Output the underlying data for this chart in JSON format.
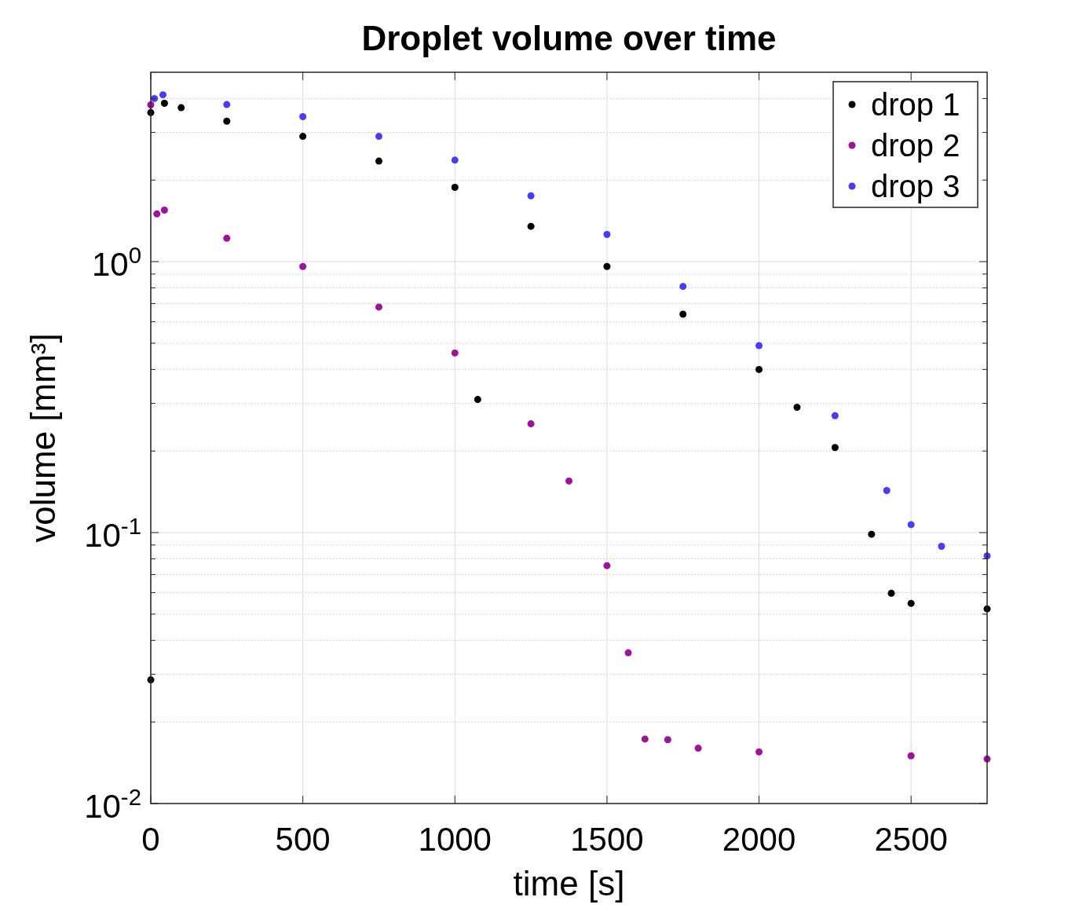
{
  "chart_data": {
    "type": "scatter",
    "title": "Droplet volume over time",
    "xlabel": "time [s]",
    "ylabel": "volume [mm³]",
    "xlim": [
      0,
      2750
    ],
    "xticks": [
      0,
      500,
      1000,
      1500,
      2000,
      2500
    ],
    "ylim": [
      0.01,
      5
    ],
    "yticks": [
      {
        "value": 0.01,
        "label": "10$^{-2}$"
      },
      {
        "value": 0.1,
        "label": "10$^{-1}$"
      },
      {
        "value": 1,
        "label": "10$^{0}$"
      }
    ],
    "log": "y",
    "grid": true,
    "legend": "top right",
    "marker": "circle",
    "series": [
      {
        "name": "drop 1",
        "color": "#000000",
        "x": [
          0,
          0,
          45,
          100,
          250,
          500,
          750,
          1000,
          1075,
          1250,
          1500,
          1750,
          2000,
          2125,
          2250,
          2370,
          2435,
          2500,
          2750
        ],
        "values": [
          0.0286,
          3.55,
          3.84,
          3.7,
          3.3,
          2.9,
          2.35,
          1.88,
          0.31,
          1.35,
          0.96,
          0.64,
          0.4,
          0.29,
          0.206,
          0.0986,
          0.0597,
          0.0548,
          0.0523
        ]
      },
      {
        "name": "drop 2",
        "color": "#a0129e",
        "x": [
          0,
          20,
          45,
          250,
          500,
          750,
          1000,
          1250,
          1375,
          1500,
          1570,
          1625,
          1700,
          1800,
          2000,
          2500,
          2750
        ],
        "values": [
          3.79,
          1.5,
          1.55,
          1.22,
          0.96,
          0.68,
          0.46,
          0.252,
          0.155,
          0.0755,
          0.036,
          0.0173,
          0.0172,
          0.016,
          0.0155,
          0.015,
          0.0146
        ]
      },
      {
        "name": "drop 3",
        "color": "#4a3cf5",
        "x": [
          12,
          40,
          250,
          500,
          750,
          1000,
          1250,
          1500,
          1750,
          2000,
          2250,
          2420,
          2500,
          2600,
          2750
        ],
        "values": [
          4.0,
          4.13,
          3.8,
          3.43,
          2.9,
          2.37,
          1.75,
          1.26,
          0.81,
          0.49,
          0.27,
          0.143,
          0.107,
          0.089,
          0.082
        ]
      }
    ]
  }
}
